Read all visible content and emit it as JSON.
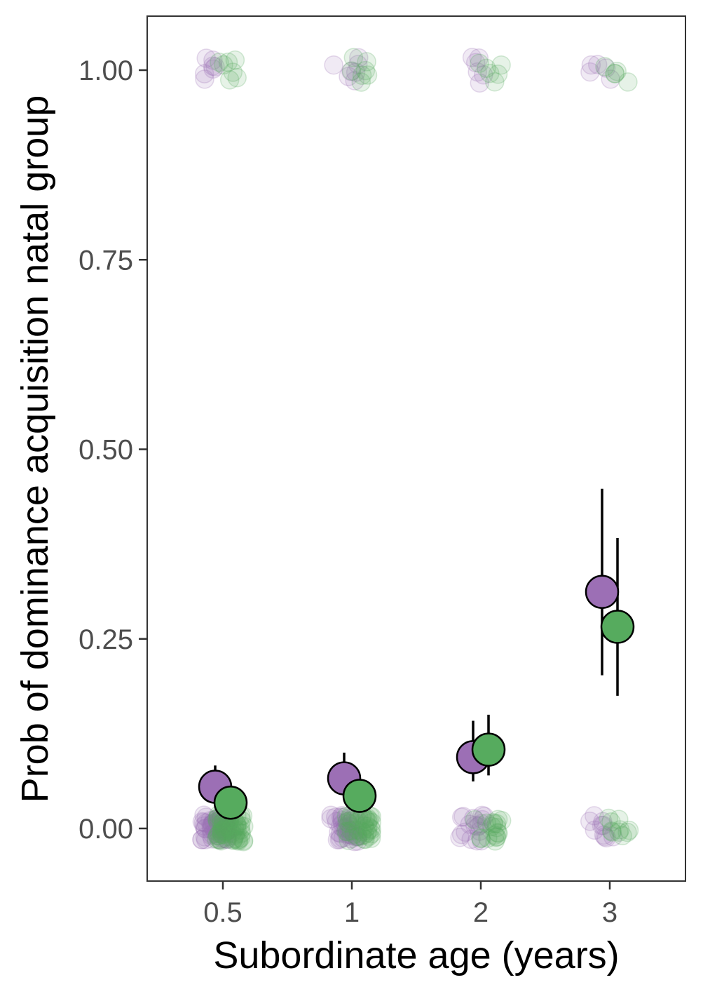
{
  "chart_data": {
    "type": "scatter",
    "title": "",
    "xlabel": "Subordinate age (years)",
    "ylabel": "Prob of dominance acquisition natal group",
    "categories": [
      "0.5",
      "1",
      "2",
      "3"
    ],
    "yticks": [
      "0.00",
      "0.25",
      "0.50",
      "0.75",
      "1.00"
    ],
    "ytick_values": [
      0,
      0.25,
      0.5,
      0.75,
      1.0
    ],
    "ylim": [
      -0.07,
      1.07
    ],
    "grid": false,
    "legend": "none",
    "series": [
      {
        "color": "#9c6fb5",
        "estimates": [
          0.055,
          0.066,
          0.094,
          0.312
        ],
        "ci_low": [
          0.045,
          0.052,
          0.062,
          0.202
        ],
        "ci_high": [
          0.083,
          0.1,
          0.142,
          0.448
        ]
      },
      {
        "color": "#56ab5e",
        "estimates": [
          0.034,
          0.043,
          0.104,
          0.266
        ],
        "ci_low": [
          0.027,
          0.033,
          0.07,
          0.175
        ],
        "ci_high": [
          0.047,
          0.058,
          0.15,
          0.383
        ]
      }
    ],
    "raw_points_at": [
      0,
      1
    ]
  }
}
